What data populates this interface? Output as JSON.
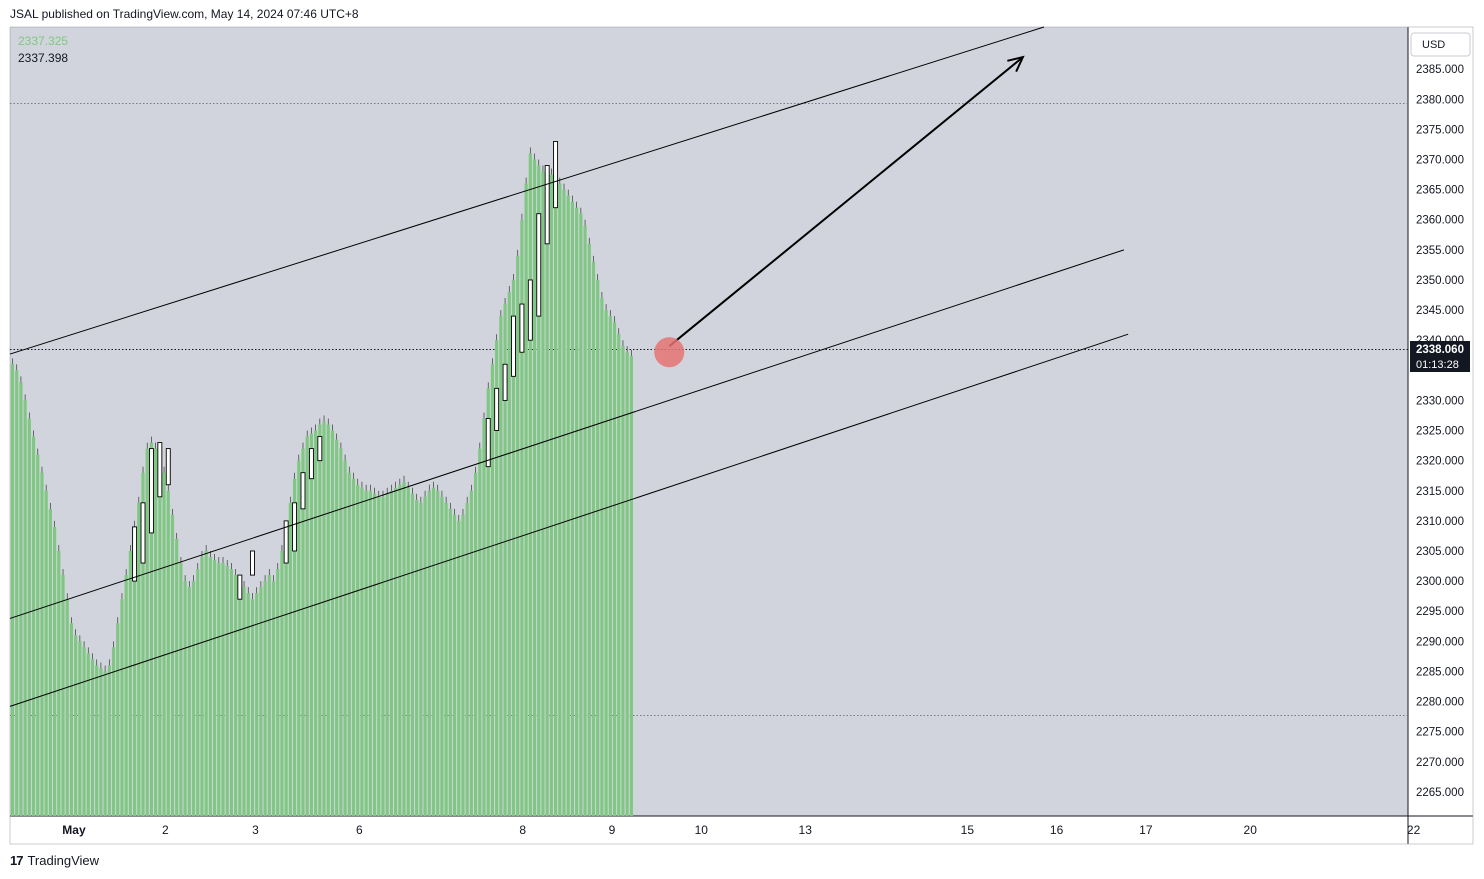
{
  "header": {
    "publish_line": "JSAL published on TradingView.com, May 14, 2024 07:46 UTC+8"
  },
  "legend": {
    "value_green": "2337.325",
    "value_dark": "2337.398"
  },
  "currency_button": "USD",
  "price_label": {
    "price": "2338.060",
    "countdown": "01:13:28"
  },
  "footer": {
    "brand": "TradingView",
    "logo_text": "17"
  },
  "colors": {
    "plot_bg": "#d1d4dc",
    "candle_fill": "#81c784",
    "candle_up": "#ffffff",
    "line": "#000000",
    "marker": "#e57373"
  },
  "chart_data": {
    "type": "candlestick",
    "ylim": [
      2261,
      2392
    ],
    "y_ticks": [
      "2265.000",
      "2270.000",
      "2275.000",
      "2280.000",
      "2285.000",
      "2290.000",
      "2295.000",
      "2300.000",
      "2305.000",
      "2310.000",
      "2315.000",
      "2320.000",
      "2325.000",
      "2330.000",
      "2340.000",
      "2345.000",
      "2350.000",
      "2355.000",
      "2360.000",
      "2365.000",
      "2370.000",
      "2375.000",
      "2380.000",
      "2385.000"
    ],
    "y_tick_values": [
      2265,
      2270,
      2275,
      2280,
      2285,
      2290,
      2295,
      2300,
      2305,
      2310,
      2315,
      2320,
      2325,
      2330,
      2340,
      2345,
      2350,
      2355,
      2360,
      2365,
      2370,
      2375,
      2380,
      2385
    ],
    "x_ticks": [
      {
        "label": "May",
        "bar": 14.6,
        "bold": true
      },
      {
        "label": "2",
        "bar": 36.3
      },
      {
        "label": "3",
        "bar": 57.7
      },
      {
        "label": "6",
        "bar": 82.4
      },
      {
        "label": "8",
        "bar": 121.2
      },
      {
        "label": "9",
        "bar": 142.4
      },
      {
        "label": "10",
        "bar": 163.6
      },
      {
        "label": "13",
        "bar": 188.3
      },
      {
        "label": "15",
        "bar": 226.8
      },
      {
        "label": "16",
        "bar": 248.0
      },
      {
        "label": "17",
        "bar": 269.2
      },
      {
        "label": "20",
        "bar": 294.0
      },
      {
        "label": "22",
        "bar": 332.8
      }
    ],
    "closes": [
      2336,
      2335,
      2333,
      2330,
      2327,
      2324,
      2321,
      2318,
      2315,
      2312,
      2309,
      2305,
      2301,
      2297,
      2293,
      2291,
      2290,
      2289,
      2288,
      2287,
      2286,
      2285.5,
      2285,
      2286,
      2289,
      2293,
      2297,
      2301,
      2305,
      2309,
      2313,
      2318,
      2322,
      2323,
      2322,
      2320,
      2318,
      2315,
      2311,
      2307,
      2303,
      2300,
      2299,
      2300,
      2302,
      2304,
      2305,
      2304,
      2303.5,
      2303,
      2303,
      2302.5,
      2302,
      2301,
      2300,
      2299,
      2298,
      2297,
      2298,
      2299,
      2300,
      2301,
      2300,
      2302,
      2305,
      2309,
      2313,
      2317,
      2320,
      2322,
      2324,
      2324.5,
      2325,
      2326,
      2326.5,
      2326,
      2325,
      2323.5,
      2322,
      2320,
      2318,
      2317,
      2316,
      2315.5,
      2315,
      2315,
      2314.5,
      2314,
      2314,
      2314.5,
      2315,
      2315.5,
      2316,
      2316.5,
      2315.5,
      2314.5,
      2313.5,
      2313,
      2314,
      2315,
      2315.5,
      2315,
      2314,
      2313,
      2312,
      2311,
      2310,
      2311,
      2313,
      2315,
      2318,
      2322,
      2327,
      2332,
      2336,
      2340,
      2344,
      2346,
      2348,
      2350,
      2354,
      2360,
      2366,
      2371,
      2370,
      2369,
      2368,
      2367,
      2367.5,
      2367,
      2366,
      2365,
      2364,
      2363,
      2362,
      2361,
      2359,
      2356,
      2353,
      2350,
      2347,
      2345,
      2344,
      2343,
      2341,
      2339,
      2338,
      2337.4
    ],
    "up_boxes": [
      {
        "bar": 29,
        "low": 2300,
        "high": 2309
      },
      {
        "bar": 31,
        "low": 2303,
        "high": 2313
      },
      {
        "bar": 33,
        "low": 2308,
        "high": 2322
      },
      {
        "bar": 35,
        "low": 2314,
        "high": 2323
      },
      {
        "bar": 37,
        "low": 2316,
        "high": 2322
      },
      {
        "bar": 54,
        "low": 2297,
        "high": 2301
      },
      {
        "bar": 57,
        "low": 2301,
        "high": 2305
      },
      {
        "bar": 65,
        "low": 2303,
        "high": 2310
      },
      {
        "bar": 67,
        "low": 2305,
        "high": 2313
      },
      {
        "bar": 69,
        "low": 2312,
        "high": 2318
      },
      {
        "bar": 71,
        "low": 2317,
        "high": 2322
      },
      {
        "bar": 73,
        "low": 2320,
        "high": 2324
      },
      {
        "bar": 113,
        "low": 2319,
        "high": 2327
      },
      {
        "bar": 115,
        "low": 2325,
        "high": 2332
      },
      {
        "bar": 117,
        "low": 2330,
        "high": 2336
      },
      {
        "bar": 119,
        "low": 2334,
        "high": 2344
      },
      {
        "bar": 121,
        "low": 2338,
        "high": 2346
      },
      {
        "bar": 123,
        "low": 2340,
        "high": 2350
      },
      {
        "bar": 125,
        "low": 2344,
        "high": 2361
      },
      {
        "bar": 127,
        "low": 2356,
        "high": 2369
      },
      {
        "bar": 129,
        "low": 2362,
        "high": 2373
      }
    ],
    "channel": {
      "upper": [
        {
          "bar": 0,
          "price": 2337.7
        },
        {
          "bar": 245,
          "price": 2392
        }
      ],
      "middle": [
        {
          "bar": 0,
          "price": 2293.8
        },
        {
          "bar": 264,
          "price": 2355
        }
      ],
      "lower": [
        {
          "bar": 0,
          "price": 2279.2
        },
        {
          "bar": 265,
          "price": 2341
        }
      ]
    },
    "arrow": {
      "from": {
        "bar": 156,
        "price": 2339
      },
      "to": {
        "bar": 240,
        "price": 2387
      }
    },
    "marker": {
      "bar": 156,
      "price": 2338
    }
  }
}
